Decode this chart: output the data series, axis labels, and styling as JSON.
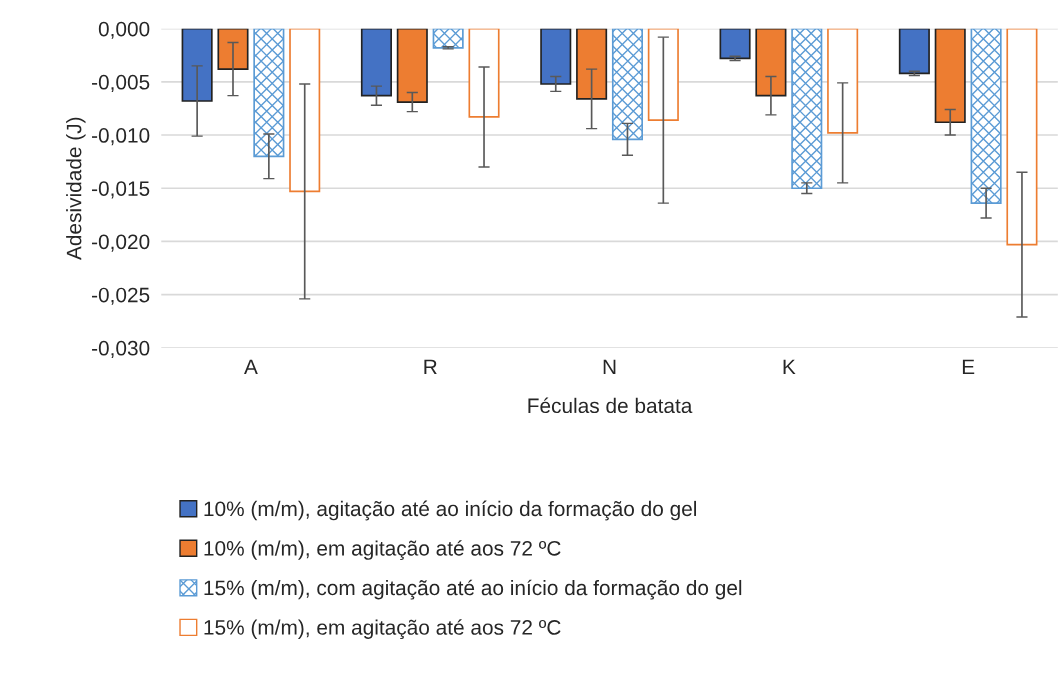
{
  "chart_data": {
    "type": "bar",
    "xlabel": "Féculas de batata",
    "ylabel": "Adesividade (J)",
    "categories": [
      "A",
      "R",
      "N",
      "K",
      "E"
    ],
    "series": [
      {
        "name": "10% (m/m), agitação até ao início da formação do gel",
        "color": "#4472c4",
        "values": [
          -0.0068,
          -0.0063,
          -0.0052,
          -0.0028,
          -0.0042
        ],
        "errors": [
          0.0033,
          0.0009,
          0.0007,
          0.0002,
          0.0002
        ]
      },
      {
        "name": "10% (m/m), em agitação até aos 72 ºC",
        "color": "#ed7d31",
        "values": [
          -0.0038,
          -0.0069,
          -0.0066,
          -0.0063,
          -0.0088
        ],
        "errors": [
          0.0025,
          0.0009,
          0.0028,
          0.0018,
          0.0012
        ]
      },
      {
        "name": "15% (m/m), com agitação até ao início da formação do gel",
        "color": "#5b9bd5",
        "values": [
          -0.012,
          -0.0018,
          -0.0104,
          -0.015,
          -0.0164
        ],
        "errors": [
          0.0021,
          0.0001,
          0.0015,
          0.0005,
          0.0014
        ]
      },
      {
        "name": "15% (m/m), em agitação até aos 72 ºC",
        "color": "#ed7d31",
        "values": [
          -0.0153,
          -0.0083,
          -0.0086,
          -0.0098,
          -0.0203
        ],
        "errors": [
          0.0101,
          0.0047,
          0.0078,
          0.0047,
          0.0068
        ]
      }
    ],
    "ylim": [
      -0.03,
      0.0
    ],
    "yticks": [
      {
        "value": -0.03,
        "label": "-0,030"
      },
      {
        "value": -0.025,
        "label": "-0,025"
      },
      {
        "value": -0.02,
        "label": "-0,020"
      },
      {
        "value": -0.015,
        "label": "-0,015"
      },
      {
        "value": -0.01,
        "label": "-0,010"
      },
      {
        "value": -0.005,
        "label": "-0,005"
      },
      {
        "value": 0.0,
        "label": "0,000"
      }
    ],
    "grid": "y",
    "legend": "bottom"
  }
}
